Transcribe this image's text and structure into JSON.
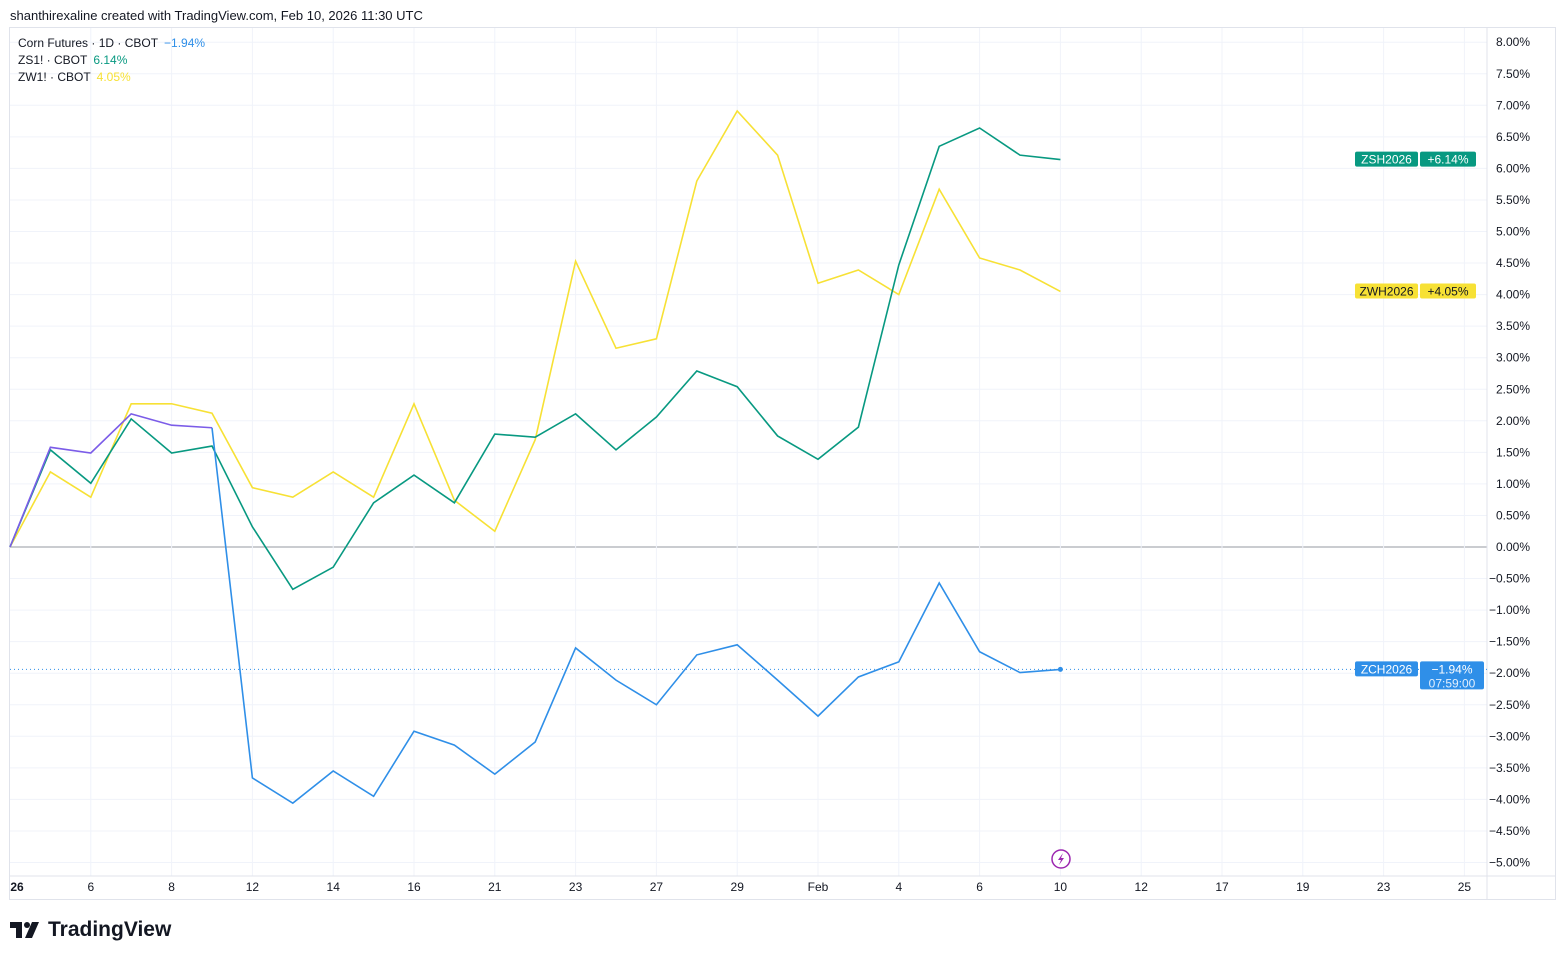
{
  "credit": "shanthirexaline created with TradingView.com, Feb 10, 2026 11:30 UTC",
  "brand": "TradingView",
  "legend": [
    {
      "label": "Corn Futures · 1D · CBOT",
      "value": "−1.94%",
      "color": "#2f8fe8"
    },
    {
      "label": "ZS1! · CBOT",
      "value": "6.14%",
      "color": "#089981"
    },
    {
      "label": "ZW1! · CBOT",
      "value": "4.05%",
      "color": "#f7e135"
    }
  ],
  "chart_data": {
    "type": "line",
    "x": [
      "2026-01-02",
      "2026-01-05",
      "2026-01-06",
      "2026-01-07",
      "2026-01-08",
      "2026-01-09",
      "2026-01-12",
      "2026-01-13",
      "2026-01-14",
      "2026-01-15",
      "2026-01-16",
      "2026-01-20",
      "2026-01-21",
      "2026-01-22",
      "2026-01-23",
      "2026-01-26",
      "2026-01-27",
      "2026-01-28",
      "2026-01-29",
      "2026-01-30",
      "2026-02-02",
      "2026-02-03",
      "2026-02-04",
      "2026-02-05",
      "2026-02-06",
      "2026-02-09",
      "2026-02-10"
    ],
    "x_tick_labels": [
      "26",
      "6",
      "8",
      "12",
      "14",
      "16",
      "21",
      "23",
      "27",
      "29",
      "Feb",
      "4",
      "6",
      "10",
      "12",
      "17",
      "19",
      "23",
      "25"
    ],
    "y_tick_labels": [
      "8.00%",
      "7.50%",
      "7.00%",
      "6.50%",
      "6.00%",
      "5.50%",
      "5.00%",
      "4.50%",
      "4.00%",
      "3.50%",
      "3.00%",
      "2.50%",
      "2.00%",
      "1.50%",
      "1.00%",
      "0.50%",
      "0.00%",
      "-0.50%",
      "-1.00%",
      "-1.50%",
      "-2.00%",
      "-2.50%",
      "-3.00%",
      "-3.50%",
      "-4.00%",
      "-4.50%",
      "-5.00%"
    ],
    "ylim": [
      -5.2,
      8.2
    ],
    "ylabel": "",
    "xlabel": "",
    "grid": true,
    "series": [
      {
        "name": "ZCH2026",
        "tag": "−1.94%",
        "countdown": "07:59:00",
        "color": "#2f8fe8",
        "early_color": "#7b5ce8",
        "values": [
          0,
          1.58,
          1.49,
          2.11,
          1.93,
          1.89,
          -3.66,
          -4.06,
          -3.55,
          -3.95,
          -2.92,
          -3.14,
          -3.6,
          -3.09,
          -1.6,
          -2.11,
          -2.5,
          -1.71,
          -1.55,
          -2.11,
          -2.68,
          -2.06,
          -1.82,
          -0.57,
          -1.66,
          -1.99,
          -1.94
        ]
      },
      {
        "name": "ZSH2026",
        "tag": "+6.14%",
        "color": "#089981",
        "values": [
          0,
          1.54,
          1.01,
          2.03,
          1.49,
          1.6,
          0.32,
          -0.67,
          -0.32,
          0.7,
          1.14,
          0.7,
          1.79,
          1.74,
          2.11,
          1.54,
          2.06,
          2.79,
          2.54,
          1.76,
          1.39,
          1.9,
          4.47,
          6.35,
          6.64,
          6.21,
          6.14
        ]
      },
      {
        "name": "ZWH2026",
        "tag": "+4.05%",
        "color": "#f7e135",
        "values": [
          0,
          1.19,
          0.79,
          2.27,
          2.27,
          2.12,
          0.94,
          0.79,
          1.19,
          0.79,
          2.27,
          0.74,
          0.25,
          1.7,
          4.53,
          3.15,
          3.3,
          5.8,
          6.91,
          6.21,
          4.18,
          4.39,
          4.0,
          5.67,
          4.58,
          4.39,
          4.05
        ]
      }
    ]
  }
}
